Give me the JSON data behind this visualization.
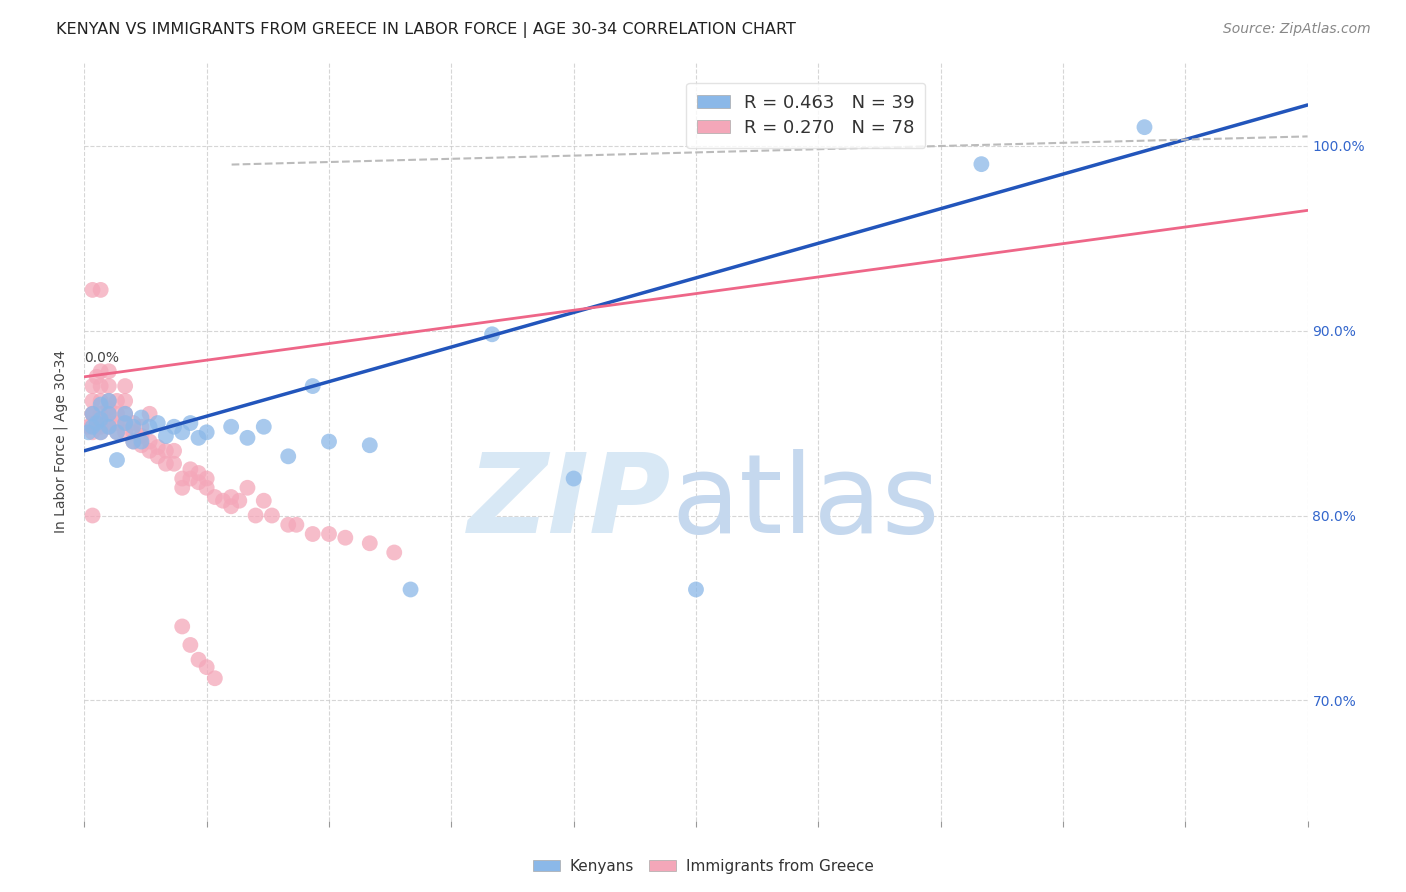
{
  "title": "KENYAN VS IMMIGRANTS FROM GREECE IN LABOR FORCE | AGE 30-34 CORRELATION CHART",
  "source": "Source: ZipAtlas.com",
  "ylabel": "In Labor Force | Age 30-34",
  "xmin": 0.0,
  "xmax": 0.15,
  "ymin": 0.635,
  "ymax": 1.045,
  "blue_color": "#8BB8E8",
  "pink_color": "#F4A7B9",
  "line_blue": "#2255BB",
  "line_pink": "#EE6688",
  "line_gray_dashed": "#BBBBBB",
  "title_fontsize": 11.5,
  "axis_label_fontsize": 10,
  "tick_fontsize": 10,
  "legend_fontsize": 13,
  "source_fontsize": 10,
  "kenyan_x": [
    0.0005,
    0.001,
    0.001,
    0.0015,
    0.002,
    0.002,
    0.002,
    0.003,
    0.003,
    0.003,
    0.004,
    0.004,
    0.005,
    0.005,
    0.006,
    0.006,
    0.007,
    0.007,
    0.008,
    0.009,
    0.01,
    0.011,
    0.012,
    0.013,
    0.014,
    0.015,
    0.018,
    0.02,
    0.022,
    0.025,
    0.028,
    0.03,
    0.035,
    0.04,
    0.05,
    0.06,
    0.075,
    0.11,
    0.13
  ],
  "kenyan_y": [
    0.845,
    0.848,
    0.855,
    0.85,
    0.852,
    0.845,
    0.86,
    0.848,
    0.855,
    0.862,
    0.845,
    0.83,
    0.85,
    0.855,
    0.848,
    0.84,
    0.853,
    0.84,
    0.848,
    0.85,
    0.843,
    0.848,
    0.845,
    0.85,
    0.842,
    0.845,
    0.848,
    0.842,
    0.848,
    0.832,
    0.87,
    0.84,
    0.838,
    0.76,
    0.898,
    0.82,
    0.76,
    0.99,
    1.01
  ],
  "greece_x": [
    0.0005,
    0.001,
    0.001,
    0.001,
    0.001,
    0.001,
    0.001,
    0.0015,
    0.002,
    0.002,
    0.002,
    0.002,
    0.002,
    0.002,
    0.002,
    0.003,
    0.003,
    0.003,
    0.003,
    0.003,
    0.003,
    0.003,
    0.004,
    0.004,
    0.004,
    0.004,
    0.005,
    0.005,
    0.005,
    0.005,
    0.005,
    0.006,
    0.006,
    0.006,
    0.007,
    0.007,
    0.007,
    0.008,
    0.008,
    0.008,
    0.009,
    0.009,
    0.01,
    0.01,
    0.011,
    0.011,
    0.012,
    0.012,
    0.013,
    0.013,
    0.014,
    0.014,
    0.015,
    0.015,
    0.016,
    0.017,
    0.018,
    0.018,
    0.019,
    0.02,
    0.021,
    0.022,
    0.023,
    0.025,
    0.026,
    0.028,
    0.03,
    0.032,
    0.035,
    0.038,
    0.012,
    0.013,
    0.014,
    0.015,
    0.016,
    0.001,
    0.001,
    0.002
  ],
  "greece_y": [
    0.848,
    0.845,
    0.85,
    0.855,
    0.862,
    0.87,
    0.855,
    0.875,
    0.848,
    0.852,
    0.845,
    0.855,
    0.862,
    0.87,
    0.878,
    0.848,
    0.85,
    0.855,
    0.858,
    0.862,
    0.87,
    0.878,
    0.845,
    0.85,
    0.855,
    0.862,
    0.845,
    0.85,
    0.855,
    0.862,
    0.87,
    0.84,
    0.845,
    0.85,
    0.838,
    0.843,
    0.848,
    0.835,
    0.84,
    0.855,
    0.832,
    0.837,
    0.828,
    0.835,
    0.828,
    0.835,
    0.815,
    0.82,
    0.82,
    0.825,
    0.818,
    0.823,
    0.815,
    0.82,
    0.81,
    0.808,
    0.805,
    0.81,
    0.808,
    0.815,
    0.8,
    0.808,
    0.8,
    0.795,
    0.795,
    0.79,
    0.79,
    0.788,
    0.785,
    0.78,
    0.74,
    0.73,
    0.722,
    0.718,
    0.712,
    0.8,
    0.922,
    0.922
  ]
}
